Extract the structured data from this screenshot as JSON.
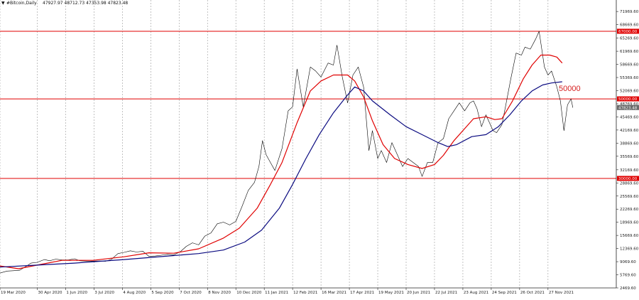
{
  "header": {
    "arrow": "▼",
    "symbol": "#Bitcoin,Daily",
    "ohlc": "47927.97 48712.73 47353.98 47823.48"
  },
  "annotation": "50000",
  "colors": {
    "price": "#000000",
    "ma_fast": "#e00000",
    "ma_slow": "#0a0a80",
    "levels": "#e00000",
    "grid": "#9a9a9a",
    "current_tag": "#6a6a6a"
  },
  "chart_data": {
    "type": "line",
    "title": "",
    "xlabel": "",
    "ylabel": "",
    "ylim": [
      2469.6,
      74500
    ],
    "y_ticks": [
      71969.6,
      68669.6,
      65269.6,
      61969.6,
      58669.6,
      55369.6,
      52069.6,
      48769.6,
      45469.6,
      42169.6,
      38869.6,
      35569.6,
      32169.6,
      28869.6,
      25569.6,
      22269.6,
      18969.6,
      15669.6,
      12369.6,
      9069.6,
      5769.6,
      2469.6
    ],
    "y_tick_labels": [
      "71969.60",
      "68669.60",
      "65269.60",
      "61969.60",
      "58669.60",
      "55369.60",
      "52069.60",
      "48769.60",
      "45469.60",
      "42169.60",
      "38869.60",
      "35569.60",
      "32169.60",
      "28869.60",
      "25569.60",
      "22269.60",
      "18969.60",
      "15669.60",
      "12369.60",
      "9069.60",
      "5769.60",
      "2469.60"
    ],
    "x_tick_labels": [
      "19 Mar 2020",
      "30 Apr 2020",
      "1 Jun 2020",
      "3 Jul 2020",
      "4 Aug 2020",
      "5 Sep 2020",
      "7 Oct 2020",
      "8 Nov 2020",
      "10 Dec 2020",
      "11 Jan 2021",
      "12 Feb 2021",
      "16 Mar 2021",
      "17 Apr 2021",
      "19 May 2021",
      "20 Jun 2021",
      "22 Jul 2021",
      "23 Aug 2021",
      "24 Sep 2021",
      "26 Oct 2021",
      "27 Nov 2021"
    ],
    "x_tick_days": [
      0,
      42,
      74,
      106,
      138,
      170,
      202,
      234,
      266,
      298,
      330,
      362,
      394,
      426,
      458,
      490,
      522,
      554,
      586,
      618
    ],
    "horizontal_levels": [
      {
        "value": 67000,
        "label": "67000.00"
      },
      {
        "value": 50000,
        "label": "50000.00"
      },
      {
        "value": 30000,
        "label": "30000.00"
      }
    ],
    "current_price": {
      "value": 47823.48,
      "label": "47823.48"
    },
    "grid": true,
    "series": [
      {
        "role": "price",
        "points": [
          [
            0,
            6200
          ],
          [
            8,
            6700
          ],
          [
            15,
            6800
          ],
          [
            22,
            6900
          ],
          [
            28,
            7700
          ],
          [
            35,
            8700
          ],
          [
            42,
            8900
          ],
          [
            50,
            9600
          ],
          [
            56,
            9300
          ],
          [
            63,
            9700
          ],
          [
            70,
            9500
          ],
          [
            77,
            9500
          ],
          [
            84,
            9800
          ],
          [
            90,
            9300
          ],
          [
            98,
            9200
          ],
          [
            105,
            9200
          ],
          [
            112,
            9250
          ],
          [
            119,
            9150
          ],
          [
            126,
            9700
          ],
          [
            133,
            11100
          ],
          [
            140,
            11400
          ],
          [
            147,
            11800
          ],
          [
            154,
            11500
          ],
          [
            161,
            11700
          ],
          [
            168,
            10400
          ],
          [
            175,
            10500
          ],
          [
            182,
            10700
          ],
          [
            189,
            10900
          ],
          [
            196,
            10800
          ],
          [
            203,
            11500
          ],
          [
            210,
            12900
          ],
          [
            217,
            13800
          ],
          [
            224,
            13300
          ],
          [
            231,
            15500
          ],
          [
            238,
            16300
          ],
          [
            245,
            18600
          ],
          [
            252,
            19000
          ],
          [
            259,
            18300
          ],
          [
            266,
            19200
          ],
          [
            273,
            23000
          ],
          [
            280,
            27000
          ],
          [
            287,
            29000
          ],
          [
            292,
            33000
          ],
          [
            296,
            39500
          ],
          [
            300,
            36000
          ],
          [
            305,
            34000
          ],
          [
            310,
            32000
          ],
          [
            318,
            37500
          ],
          [
            325,
            47000
          ],
          [
            330,
            48000
          ],
          [
            335,
            57500
          ],
          [
            342,
            48000
          ],
          [
            350,
            58000
          ],
          [
            356,
            57000
          ],
          [
            362,
            55500
          ],
          [
            370,
            59000
          ],
          [
            376,
            58500
          ],
          [
            380,
            63500
          ],
          [
            386,
            55500
          ],
          [
            392,
            49000
          ],
          [
            398,
            56000
          ],
          [
            404,
            58000
          ],
          [
            410,
            53000
          ],
          [
            416,
            37000
          ],
          [
            420,
            42000
          ],
          [
            426,
            35000
          ],
          [
            430,
            37000
          ],
          [
            436,
            34000
          ],
          [
            442,
            39000
          ],
          [
            448,
            36000
          ],
          [
            454,
            33000
          ],
          [
            460,
            35000
          ],
          [
            466,
            34000
          ],
          [
            472,
            33000
          ],
          [
            476,
            30500
          ],
          [
            482,
            34000
          ],
          [
            488,
            34000
          ],
          [
            494,
            39000
          ],
          [
            500,
            40000
          ],
          [
            506,
            45000
          ],
          [
            512,
            47000
          ],
          [
            518,
            49000
          ],
          [
            524,
            47000
          ],
          [
            530,
            49000
          ],
          [
            534,
            49500
          ],
          [
            538,
            47500
          ],
          [
            543,
            43000
          ],
          [
            548,
            46000
          ],
          [
            552,
            44000
          ],
          [
            556,
            42000
          ],
          [
            560,
            41500
          ],
          [
            566,
            43500
          ],
          [
            570,
            48000
          ],
          [
            576,
            55000
          ],
          [
            582,
            61500
          ],
          [
            588,
            61000
          ],
          [
            592,
            63000
          ],
          [
            598,
            62500
          ],
          [
            604,
            65000
          ],
          [
            608,
            67000
          ],
          [
            614,
            58000
          ],
          [
            618,
            56000
          ],
          [
            622,
            57000
          ],
          [
            628,
            53000
          ],
          [
            632,
            49500
          ],
          [
            636,
            42000
          ],
          [
            640,
            48500
          ],
          [
            644,
            50000
          ],
          [
            646,
            47800
          ]
        ]
      },
      {
        "role": "ma_fast",
        "points": [
          [
            0,
            8000
          ],
          [
            21,
            7300
          ],
          [
            42,
            8200
          ],
          [
            70,
            9400
          ],
          [
            105,
            9400
          ],
          [
            140,
            10300
          ],
          [
            168,
            11300
          ],
          [
            196,
            11200
          ],
          [
            224,
            12300
          ],
          [
            252,
            15000
          ],
          [
            270,
            17500
          ],
          [
            290,
            22500
          ],
          [
            305,
            28500
          ],
          [
            318,
            34000
          ],
          [
            335,
            44000
          ],
          [
            350,
            52000
          ],
          [
            362,
            54500
          ],
          [
            376,
            56000
          ],
          [
            392,
            56000
          ],
          [
            400,
            54500
          ],
          [
            410,
            50500
          ],
          [
            420,
            44500
          ],
          [
            432,
            38500
          ],
          [
            445,
            35000
          ],
          [
            460,
            33500
          ],
          [
            476,
            32500
          ],
          [
            490,
            33500
          ],
          [
            500,
            35800
          ],
          [
            512,
            39500
          ],
          [
            524,
            42500
          ],
          [
            534,
            45000
          ],
          [
            548,
            45500
          ],
          [
            558,
            44800
          ],
          [
            566,
            45000
          ],
          [
            578,
            49500
          ],
          [
            590,
            55000
          ],
          [
            600,
            58500
          ],
          [
            610,
            61000
          ],
          [
            620,
            61000
          ],
          [
            628,
            60500
          ],
          [
            634,
            59000
          ]
        ]
      },
      {
        "role": "ma_slow",
        "points": [
          [
            0,
            7700
          ],
          [
            42,
            8200
          ],
          [
            84,
            8700
          ],
          [
            140,
            9600
          ],
          [
            196,
            10600
          ],
          [
            224,
            11100
          ],
          [
            252,
            12000
          ],
          [
            276,
            14000
          ],
          [
            295,
            17000
          ],
          [
            315,
            22500
          ],
          [
            330,
            28500
          ],
          [
            345,
            35000
          ],
          [
            360,
            41000
          ],
          [
            376,
            46500
          ],
          [
            392,
            51000
          ],
          [
            400,
            53000
          ],
          [
            410,
            52000
          ],
          [
            420,
            49500
          ],
          [
            440,
            46000
          ],
          [
            458,
            43000
          ],
          [
            476,
            41000
          ],
          [
            494,
            39000
          ],
          [
            505,
            38000
          ],
          [
            515,
            38500
          ],
          [
            532,
            40500
          ],
          [
            548,
            41000
          ],
          [
            562,
            43000
          ],
          [
            575,
            46000
          ],
          [
            588,
            49500
          ],
          [
            600,
            52000
          ],
          [
            612,
            53500
          ],
          [
            622,
            54000
          ],
          [
            634,
            54300
          ]
        ]
      }
    ]
  }
}
